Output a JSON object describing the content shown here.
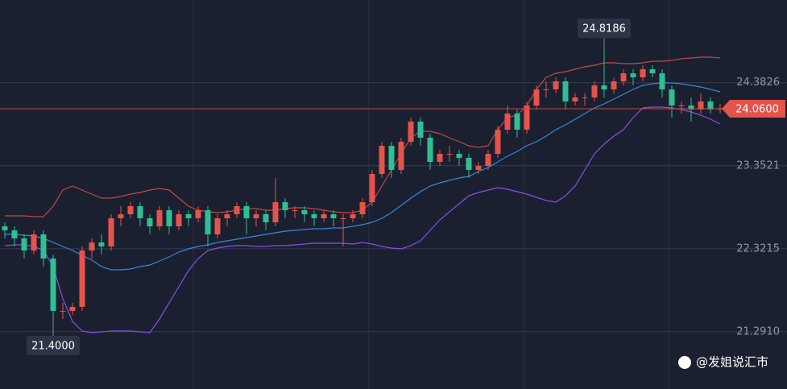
{
  "chart_data": {
    "type": "candlestick",
    "ylim": [
      20.58,
      25.41
    ],
    "yticks": [
      {
        "value": 21.291,
        "label": "21.2910"
      },
      {
        "value": 22.3215,
        "label": "22.3215"
      },
      {
        "value": 23.3521,
        "label": "23.3521"
      },
      {
        "value": 24.3826,
        "label": "24.3826"
      }
    ],
    "grid": true,
    "up_color": "#e5534b",
    "down_color": "#2fbf93",
    "open": [
      22.6,
      22.55,
      22.45,
      22.3,
      22.5,
      22.2,
      21.55,
      21.55,
      21.6,
      22.3,
      22.4,
      22.35,
      22.7,
      22.75,
      22.85,
      22.7,
      22.6,
      22.8,
      22.6,
      22.75,
      22.7,
      22.8,
      22.5,
      22.7,
      22.75,
      22.85,
      22.7,
      22.75,
      22.65,
      22.9,
      22.8,
      22.8,
      22.75,
      22.7,
      22.75,
      22.7,
      22.7,
      22.75,
      22.9,
      23.25,
      23.6,
      23.3,
      23.65,
      23.9,
      23.7,
      23.4,
      23.5,
      23.5,
      23.45,
      23.3,
      23.35,
      23.5,
      23.8,
      24.0,
      23.8,
      24.1,
      24.3,
      24.3,
      24.4,
      24.15,
      24.2,
      24.2,
      24.35,
      24.3,
      24.4,
      24.5,
      24.45,
      24.55,
      24.5,
      24.3,
      24.1,
      24.1,
      24.05,
      24.15,
      24.05
    ],
    "high": [
      22.65,
      22.6,
      22.5,
      22.55,
      22.55,
      22.25,
      21.65,
      21.65,
      22.35,
      22.45,
      22.5,
      22.75,
      22.85,
      22.9,
      22.9,
      22.75,
      22.85,
      22.85,
      22.8,
      22.8,
      22.85,
      22.85,
      22.75,
      22.8,
      22.9,
      22.9,
      22.8,
      22.8,
      23.2,
      22.95,
      22.85,
      22.85,
      22.8,
      22.8,
      22.8,
      22.75,
      22.8,
      22.95,
      23.3,
      23.65,
      23.65,
      23.7,
      23.95,
      23.95,
      23.75,
      23.55,
      23.6,
      23.55,
      23.5,
      23.4,
      23.55,
      23.85,
      24.1,
      24.05,
      24.15,
      24.35,
      24.4,
      24.45,
      24.45,
      24.25,
      24.25,
      24.4,
      24.8186,
      24.45,
      24.55,
      24.55,
      24.6,
      24.6,
      24.55,
      24.35,
      24.15,
      24.2,
      24.25,
      24.2,
      24.12
    ],
    "low": [
      22.45,
      22.35,
      22.2,
      22.25,
      22.1,
      21.4,
      21.45,
      21.5,
      21.55,
      22.2,
      22.25,
      22.3,
      22.6,
      22.7,
      22.6,
      22.5,
      22.55,
      22.5,
      22.55,
      22.6,
      22.65,
      22.35,
      22.45,
      22.6,
      22.7,
      22.5,
      22.6,
      22.55,
      22.6,
      22.7,
      22.7,
      22.65,
      22.6,
      22.65,
      22.6,
      22.35,
      22.65,
      22.7,
      22.85,
      23.2,
      23.2,
      23.25,
      23.6,
      23.6,
      23.3,
      23.35,
      23.4,
      23.35,
      23.2,
      23.25,
      23.3,
      23.45,
      23.75,
      23.7,
      23.75,
      24.05,
      24.2,
      24.25,
      24.05,
      24.1,
      24.1,
      24.15,
      24.2,
      24.25,
      24.35,
      24.35,
      24.4,
      24.45,
      24.2,
      23.95,
      24.0,
      23.9,
      24.0,
      24.0,
      24.0
    ],
    "close": [
      22.55,
      22.45,
      22.3,
      22.5,
      22.2,
      21.55,
      21.55,
      21.6,
      22.3,
      22.4,
      22.35,
      22.7,
      22.75,
      22.85,
      22.7,
      22.6,
      22.8,
      22.6,
      22.75,
      22.7,
      22.8,
      22.5,
      22.7,
      22.75,
      22.85,
      22.7,
      22.75,
      22.65,
      22.9,
      22.8,
      22.8,
      22.75,
      22.7,
      22.75,
      22.7,
      22.7,
      22.75,
      22.9,
      23.25,
      23.6,
      23.3,
      23.65,
      23.9,
      23.7,
      23.4,
      23.5,
      23.5,
      23.45,
      23.3,
      23.35,
      23.5,
      23.8,
      24.0,
      23.8,
      24.1,
      24.3,
      24.3,
      24.4,
      24.15,
      24.2,
      24.2,
      24.35,
      24.3,
      24.4,
      24.5,
      24.45,
      24.55,
      24.5,
      24.3,
      24.1,
      24.1,
      24.05,
      24.15,
      24.05,
      24.06
    ],
    "bands": [
      {
        "color": "#c24a40",
        "values": [
          22.73,
          22.73,
          22.73,
          22.72,
          22.72,
          22.85,
          23.05,
          23.1,
          23.05,
          23.0,
          22.95,
          22.95,
          22.97,
          23.0,
          23.02,
          23.05,
          23.07,
          23.05,
          22.95,
          22.85,
          22.8,
          22.78,
          22.77,
          22.78,
          22.8,
          22.82,
          22.82,
          22.8,
          22.8,
          22.82,
          22.83,
          22.83,
          22.82,
          22.8,
          22.78,
          22.77,
          22.77,
          22.8,
          22.9,
          23.1,
          23.3,
          23.5,
          23.7,
          23.78,
          23.78,
          23.75,
          23.7,
          23.65,
          23.6,
          23.58,
          23.6,
          23.8,
          23.95,
          23.98,
          24.1,
          24.3,
          24.45,
          24.5,
          24.52,
          24.55,
          24.58,
          24.6,
          24.63,
          24.63,
          24.62,
          24.62,
          24.63,
          24.65,
          24.65,
          24.66,
          24.68,
          24.69,
          24.7,
          24.7,
          24.69
        ]
      },
      {
        "color": "#3b86d9",
        "values": [
          22.5,
          22.5,
          22.49,
          22.48,
          22.45,
          22.4,
          22.35,
          22.3,
          22.24,
          22.18,
          22.1,
          22.06,
          22.06,
          22.07,
          22.1,
          22.12,
          22.17,
          22.22,
          22.28,
          22.32,
          22.35,
          22.37,
          22.4,
          22.42,
          22.44,
          22.46,
          22.48,
          22.5,
          22.52,
          22.54,
          22.55,
          22.56,
          22.57,
          22.57,
          22.58,
          22.58,
          22.6,
          22.62,
          22.65,
          22.7,
          22.77,
          22.86,
          22.95,
          23.03,
          23.1,
          23.14,
          23.17,
          23.2,
          23.22,
          23.28,
          23.33,
          23.4,
          23.47,
          23.53,
          23.6,
          23.65,
          23.72,
          23.8,
          23.86,
          23.93,
          24.0,
          24.07,
          24.12,
          24.18,
          24.24,
          24.3,
          24.35,
          24.37,
          24.38,
          24.38,
          24.37,
          24.35,
          24.33,
          24.3,
          24.27
        ]
      },
      {
        "color": "#8b4fe0",
        "values": [
          22.36,
          22.37,
          22.37,
          22.35,
          22.3,
          22.1,
          21.7,
          21.42,
          21.3,
          21.28,
          21.29,
          21.3,
          21.3,
          21.3,
          21.29,
          21.28,
          21.45,
          21.65,
          21.85,
          22.05,
          22.2,
          22.3,
          22.33,
          22.35,
          22.36,
          22.36,
          22.35,
          22.35,
          22.36,
          22.36,
          22.37,
          22.38,
          22.39,
          22.39,
          22.39,
          22.39,
          22.38,
          22.4,
          22.38,
          22.35,
          22.33,
          22.32,
          22.36,
          22.42,
          22.55,
          22.68,
          22.78,
          22.88,
          22.98,
          23.02,
          23.05,
          23.08,
          23.06,
          23.03,
          23.0,
          22.96,
          22.92,
          22.9,
          22.98,
          23.1,
          23.3,
          23.5,
          23.62,
          23.72,
          23.8,
          23.95,
          24.07,
          24.08,
          24.08,
          24.07,
          24.05,
          24.02,
          23.98,
          23.93,
          23.87
        ]
      }
    ],
    "current_price": {
      "value": 24.06,
      "label": "24.0600"
    },
    "annotations": [
      {
        "value": 24.8186,
        "label": "24.8186"
      },
      {
        "value": 21.4,
        "label": "21.4000"
      }
    ]
  },
  "watermark": "@发姐说汇市"
}
